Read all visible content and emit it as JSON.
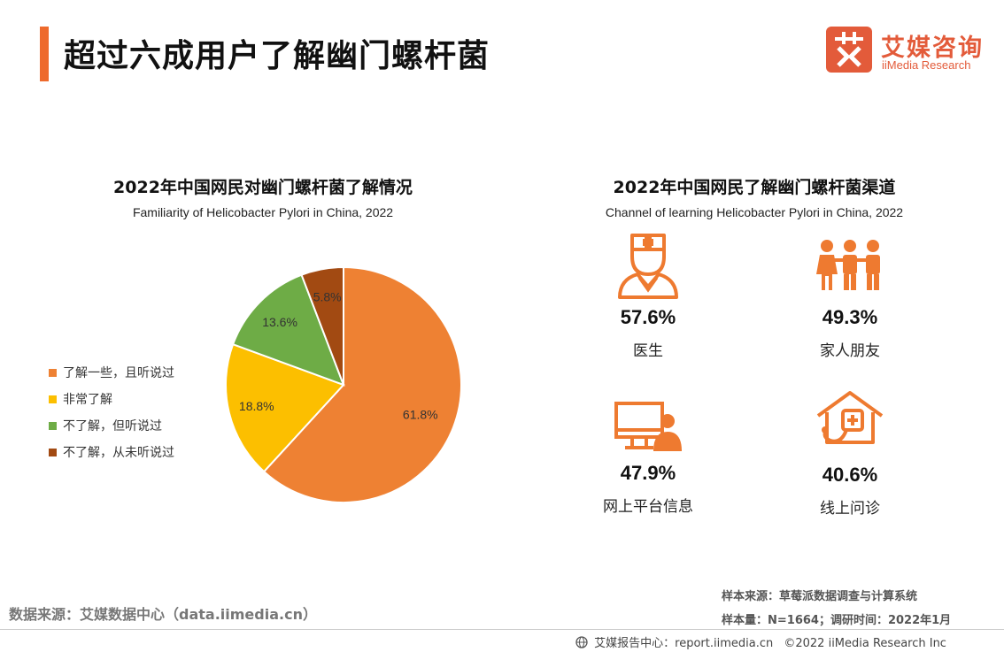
{
  "header": {
    "title": "超过六成用户了解幽门螺杆菌",
    "logo_cn": "艾媒咨询",
    "logo_en": "iiMedia Research",
    "accent_color": "#ee6a2c"
  },
  "chart_data": [
    {
      "type": "pie",
      "title": "2022年中国网民对幽门螺杆菌了解情况",
      "subtitle": "Familiarity of Helicobacter Pylori in China, 2022",
      "categories": [
        "了解一些，且听说过",
        "非常了解",
        "不了解，但听说过",
        "不了解，从未听说过"
      ],
      "values": [
        61.8,
        18.8,
        13.6,
        5.8
      ],
      "labels": [
        "61.8%",
        "18.8%",
        "13.6%",
        "5.8%"
      ],
      "colors": [
        "#ee8133",
        "#fcbf00",
        "#6eac46",
        "#a24a12"
      ],
      "legend": "left"
    },
    {
      "type": "table",
      "title": "2022年中国网民了解幽门螺杆菌渠道",
      "subtitle": "Channel of learning Helicobacter Pylori in China, 2022",
      "items": [
        {
          "label": "医生",
          "value": "57.6%",
          "icon": "doctor-icon"
        },
        {
          "label": "家人朋友",
          "value": "49.3%",
          "icon": "family-icon"
        },
        {
          "label": "网上平台信息",
          "value": "47.9%",
          "icon": "computer-user-icon"
        },
        {
          "label": "线上问诊",
          "value": "40.6%",
          "icon": "online-consult-icon"
        }
      ],
      "icon_color": "#ee7a30"
    }
  ],
  "source": {
    "left": "数据来源：艾媒数据中心（data.iimedia.cn）",
    "sample_source": "样本来源：草莓派数据调查与计算系统",
    "sample_size": "样本量：N=1664；调研时间：2022年1月"
  },
  "footer": {
    "report_center": "艾媒报告中心：report.iimedia.cn",
    "copyright": "©2022 iiMedia Research Inc"
  }
}
